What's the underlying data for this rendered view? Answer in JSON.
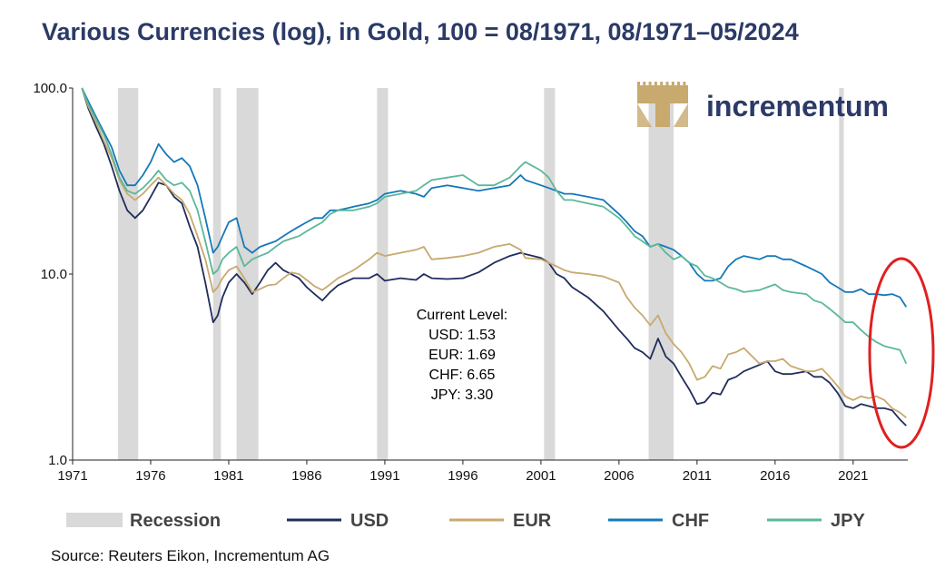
{
  "title": "Various Currencies (log), in Gold, 100 = 08/1971, 08/1971–05/2024",
  "source": "Source: Reuters Eikon, Incrementum AG",
  "logo_text": "incrementum",
  "colors": {
    "USD": "#1f2d5c",
    "EUR": "#c8a96e",
    "CHF": "#1479b8",
    "JPY": "#5bb89a",
    "recession": "#d9d9d9",
    "highlight": "#e02020",
    "logo_gold": "#c8a96e"
  },
  "chart_data": {
    "type": "line",
    "y_scale": "log",
    "ylim": [
      1.0,
      100.0
    ],
    "xlim": [
      1971.0,
      2024.5
    ],
    "y_ticks": [
      "1.0",
      "10.0",
      "100.0"
    ],
    "x_ticks": [
      "1971",
      "1976",
      "1981",
      "1986",
      "1991",
      "1996",
      "2001",
      "2006",
      "2011",
      "2016",
      "2021"
    ],
    "grid": false,
    "legend_position": "bottom",
    "recessions": [
      [
        1973.9,
        1975.2
      ],
      [
        1980.0,
        1980.5
      ],
      [
        1981.5,
        1982.9
      ],
      [
        1990.5,
        1991.2
      ],
      [
        2001.2,
        2001.9
      ],
      [
        2007.9,
        2009.5
      ],
      [
        2020.1,
        2020.4
      ]
    ],
    "series": [
      {
        "name": "USD",
        "x": [
          1971.6,
          1972,
          1972.5,
          1973,
          1973.5,
          1974,
          1974.5,
          1975,
          1975.5,
          1976,
          1976.5,
          1977,
          1977.5,
          1978,
          1978.5,
          1979,
          1979.5,
          1980,
          1980.3,
          1980.6,
          1981,
          1981.5,
          1982,
          1982.5,
          1983,
          1983.5,
          1984,
          1984.5,
          1985,
          1985.5,
          1986,
          1986.5,
          1987,
          1987.5,
          1988,
          1989,
          1990,
          1990.5,
          1991,
          1992,
          1993,
          1993.5,
          1994,
          1995,
          1996,
          1997,
          1998,
          1999,
          1999.7,
          2000,
          2001,
          2001.5,
          2002,
          2002.5,
          2003,
          2004,
          2005,
          2006,
          2006.5,
          2007,
          2007.5,
          2008,
          2008.5,
          2009,
          2009.5,
          2010,
          2010.5,
          2011,
          2011.5,
          2012,
          2012.5,
          2013,
          2013.5,
          2014,
          2015,
          2015.5,
          2016,
          2016.5,
          2017,
          2018,
          2018.5,
          2019,
          2019.5,
          2020,
          2020.5,
          2021,
          2021.5,
          2022,
          2022.5,
          2023,
          2023.5,
          2024,
          2024.4
        ],
        "y": [
          100,
          78,
          62,
          50,
          38,
          28,
          22,
          20,
          22,
          26,
          31,
          30,
          26,
          24,
          18,
          14,
          9,
          5.5,
          6,
          7.5,
          9,
          10,
          9,
          7.8,
          9,
          10.5,
          11.5,
          10.5,
          10,
          9.5,
          8.5,
          7.8,
          7.2,
          8,
          8.7,
          9.5,
          9.5,
          10,
          9.2,
          9.5,
          9.3,
          10,
          9.5,
          9.4,
          9.5,
          10.2,
          11.5,
          12.5,
          13,
          12.8,
          12.2,
          11.5,
          10,
          9.5,
          8.5,
          7.5,
          6.3,
          5.0,
          4.5,
          4.0,
          3.8,
          3.5,
          4.5,
          3.6,
          3.3,
          2.8,
          2.4,
          2.0,
          2.05,
          2.3,
          2.25,
          2.7,
          2.8,
          3.0,
          3.25,
          3.4,
          3.0,
          2.9,
          2.9,
          3.0,
          2.8,
          2.8,
          2.6,
          2.3,
          1.95,
          1.9,
          2.0,
          1.95,
          1.9,
          1.9,
          1.85,
          1.65,
          1.53
        ]
      },
      {
        "name": "EUR",
        "x": [
          1971.6,
          1972,
          1972.5,
          1973,
          1973.5,
          1974,
          1974.5,
          1975,
          1975.5,
          1976,
          1976.5,
          1977,
          1977.5,
          1978,
          1978.5,
          1979,
          1979.5,
          1980,
          1980.3,
          1980.6,
          1981,
          1981.5,
          1982,
          1982.5,
          1983,
          1983.5,
          1984,
          1984.5,
          1985,
          1985.5,
          1986,
          1986.5,
          1987,
          1987.5,
          1988,
          1989,
          1990,
          1990.5,
          1991,
          1992,
          1993,
          1993.5,
          1994,
          1995,
          1996,
          1997,
          1998,
          1999,
          1999.7,
          2000,
          2001,
          2001.5,
          2002,
          2002.5,
          2003,
          2004,
          2005,
          2006,
          2006.5,
          2007,
          2007.5,
          2008,
          2008.5,
          2009,
          2009.5,
          2010,
          2010.5,
          2011,
          2011.5,
          2012,
          2012.5,
          2013,
          2013.5,
          2014,
          2015,
          2015.5,
          2016,
          2016.5,
          2017,
          2018,
          2018.5,
          2019,
          2019.5,
          2020,
          2020.5,
          2021,
          2021.5,
          2022,
          2022.5,
          2023,
          2023.5,
          2024,
          2024.4
        ],
        "y": [
          100,
          80,
          65,
          52,
          42,
          32,
          27,
          25,
          27,
          30,
          33,
          30,
          27,
          25,
          21,
          16,
          12,
          8,
          8.5,
          9.5,
          10.5,
          11,
          9.5,
          8,
          8.3,
          8.7,
          8.8,
          9.5,
          10.2,
          10,
          9.3,
          8.6,
          8.2,
          8.8,
          9.5,
          10.5,
          12,
          13,
          12.5,
          13,
          13.5,
          14,
          12,
          12.2,
          12.5,
          13,
          14,
          14.5,
          13.5,
          12.2,
          12,
          11.5,
          11,
          10.5,
          10.2,
          10,
          9.7,
          9,
          7.5,
          6.6,
          6.0,
          5.3,
          6,
          4.8,
          4.2,
          3.8,
          3.3,
          2.7,
          2.8,
          3.2,
          3.1,
          3.7,
          3.8,
          4.0,
          3.3,
          3.4,
          3.4,
          3.5,
          3.2,
          3.0,
          3.0,
          3.1,
          2.8,
          2.5,
          2.2,
          2.1,
          2.2,
          2.15,
          2.2,
          2.1,
          1.9,
          1.8,
          1.69
        ]
      },
      {
        "name": "CHF",
        "x": [
          1971.6,
          1972,
          1972.5,
          1973,
          1973.5,
          1974,
          1974.5,
          1975,
          1975.5,
          1976,
          1976.5,
          1977,
          1977.5,
          1978,
          1978.5,
          1979,
          1979.5,
          1980,
          1980.3,
          1980.6,
          1981,
          1981.5,
          1982,
          1982.5,
          1983,
          1983.5,
          1984,
          1984.5,
          1985,
          1985.5,
          1986,
          1986.5,
          1987,
          1987.5,
          1988,
          1989,
          1990,
          1990.5,
          1991,
          1992,
          1993,
          1993.5,
          1994,
          1995,
          1996,
          1997,
          1998,
          1999,
          1999.7,
          2000,
          2001,
          2001.5,
          2002,
          2002.5,
          2003,
          2004,
          2005,
          2006,
          2006.5,
          2007,
          2007.5,
          2008,
          2008.5,
          2009,
          2009.5,
          2010,
          2010.5,
          2011,
          2011.5,
          2012,
          2012.5,
          2013,
          2013.5,
          2014,
          2015,
          2015.5,
          2016,
          2016.5,
          2017,
          2018,
          2018.5,
          2019,
          2019.5,
          2020,
          2020.5,
          2021,
          2021.5,
          2022,
          2022.5,
          2023,
          2023.5,
          2024,
          2024.4
        ],
        "y": [
          100,
          85,
          70,
          58,
          48,
          36,
          30,
          30,
          34,
          40,
          50,
          44,
          40,
          42,
          38,
          30,
          20,
          13,
          14,
          16,
          19,
          20,
          14,
          13,
          14,
          14.5,
          15,
          16,
          17,
          18,
          19,
          20,
          20,
          22,
          22,
          23,
          24,
          25,
          27,
          28,
          27,
          26,
          29,
          30,
          29,
          28,
          29,
          30,
          34,
          32,
          30,
          29,
          28,
          27,
          27,
          26,
          25,
          21,
          19,
          17,
          16,
          14,
          14.5,
          14,
          13.5,
          12.5,
          11.5,
          10,
          9.2,
          9.2,
          9.5,
          11,
          12,
          12.5,
          12,
          12.5,
          12.5,
          12,
          12,
          11,
          10.5,
          10,
          9,
          8.5,
          8,
          8,
          8.3,
          7.8,
          7.8,
          7.7,
          7.8,
          7.5,
          6.65
        ]
      },
      {
        "name": "JPY",
        "x": [
          1971.6,
          1972,
          1972.5,
          1973,
          1973.5,
          1974,
          1974.5,
          1975,
          1975.5,
          1976,
          1976.5,
          1977,
          1977.5,
          1978,
          1978.5,
          1979,
          1979.5,
          1980,
          1980.3,
          1980.6,
          1981,
          1981.5,
          1982,
          1982.5,
          1983,
          1983.5,
          1984,
          1984.5,
          1985,
          1985.5,
          1986,
          1986.5,
          1987,
          1987.5,
          1988,
          1989,
          1990,
          1990.5,
          1991,
          1992,
          1993,
          1993.5,
          1994,
          1995,
          1996,
          1997,
          1998,
          1999,
          1999.7,
          2000,
          2001,
          2001.5,
          2002,
          2002.5,
          2003,
          2004,
          2005,
          2006,
          2006.5,
          2007,
          2007.5,
          2008,
          2008.5,
          2009,
          2009.5,
          2010,
          2010.5,
          2011,
          2011.5,
          2012,
          2012.5,
          2013,
          2013.5,
          2014,
          2015,
          2015.5,
          2016,
          2016.5,
          2017,
          2018,
          2018.5,
          2019,
          2019.5,
          2020,
          2020.5,
          2021,
          2021.5,
          2022,
          2022.5,
          2023,
          2023.5,
          2024,
          2024.4
        ],
        "y": [
          100,
          82,
          68,
          56,
          44,
          33,
          28,
          27,
          29,
          32,
          36,
          32,
          30,
          31,
          28,
          22,
          15,
          10,
          10.5,
          12,
          13,
          14,
          11,
          12,
          12.5,
          13,
          14,
          15,
          15.5,
          16,
          17,
          18,
          19,
          21,
          22,
          22,
          23,
          24,
          26,
          27,
          28,
          30,
          32,
          33,
          34,
          30,
          30,
          33,
          38,
          40,
          36,
          33,
          28,
          25,
          25,
          24,
          23,
          20,
          18,
          16,
          15,
          14,
          14.5,
          13,
          12,
          12.5,
          11.5,
          11,
          9.8,
          9.5,
          9.0,
          8.5,
          8.3,
          8.0,
          8.2,
          8.5,
          8.8,
          8.2,
          8.0,
          7.8,
          7.2,
          7.0,
          6.5,
          6.0,
          5.5,
          5.5,
          5.0,
          4.6,
          4.3,
          4.1,
          4.0,
          3.9,
          3.3
        ]
      }
    ],
    "annotation": {
      "heading": "Current Level:",
      "lines": [
        "USD: 1.53",
        "EUR: 1.69",
        "CHF: 6.65",
        "JPY: 3.30"
      ]
    },
    "legend": [
      {
        "key": "recession",
        "label": "Recession"
      },
      {
        "key": "USD",
        "label": "USD"
      },
      {
        "key": "EUR",
        "label": "EUR"
      },
      {
        "key": "CHF",
        "label": "CHF"
      },
      {
        "key": "JPY",
        "label": "JPY"
      }
    ]
  }
}
